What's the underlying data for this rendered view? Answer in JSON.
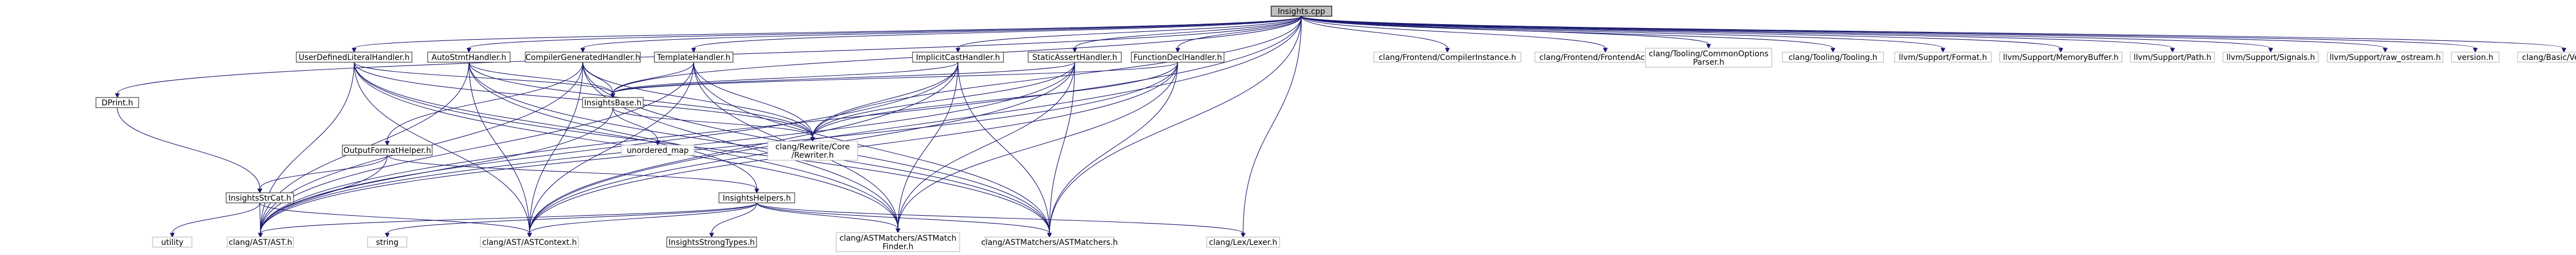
{
  "graph": {
    "edge_color": "#191970",
    "root_fill": "#bfbfbf",
    "box_border": "#bfbfbf",
    "documented_box_border": "#404040",
    "nodes": [
      {
        "id": "insights_cpp",
        "label": [
          "Insights.cpp"
        ],
        "kind": "root"
      },
      {
        "id": "dprint",
        "label": [
          "DPrint.h"
        ],
        "kind": "documented"
      },
      {
        "id": "udl",
        "label": [
          "UserDefinedLiteralHandler.h"
        ],
        "kind": "documented"
      },
      {
        "id": "autostmt",
        "label": [
          "AutoStmtHandler.h"
        ],
        "kind": "documented"
      },
      {
        "id": "compgen",
        "label": [
          "CompilerGeneratedHandler.h"
        ],
        "kind": "documented"
      },
      {
        "id": "templ",
        "label": [
          "TemplateHandler.h"
        ],
        "kind": "documented"
      },
      {
        "id": "implicit",
        "label": [
          "ImplicitCastHandler.h"
        ],
        "kind": "documented"
      },
      {
        "id": "staticassert",
        "label": [
          "StaticAssertHandler.h"
        ],
        "kind": "documented"
      },
      {
        "id": "funcdecl",
        "label": [
          "FunctionDeclHandler.h"
        ],
        "kind": "documented"
      },
      {
        "id": "compinst",
        "label": [
          "clang/Frontend/CompilerInstance.h"
        ],
        "kind": "system"
      },
      {
        "id": "frontactions",
        "label": [
          "clang/Frontend/FrontendActions.h"
        ],
        "kind": "system"
      },
      {
        "id": "commonopts",
        "label": [
          "clang/Tooling/CommonOptions",
          "Parser.h"
        ],
        "kind": "system"
      },
      {
        "id": "tooling",
        "label": [
          "clang/Tooling/Tooling.h"
        ],
        "kind": "system"
      },
      {
        "id": "format",
        "label": [
          "llvm/Support/Format.h"
        ],
        "kind": "system"
      },
      {
        "id": "membuf",
        "label": [
          "llvm/Support/MemoryBuffer.h"
        ],
        "kind": "system"
      },
      {
        "id": "path",
        "label": [
          "llvm/Support/Path.h"
        ],
        "kind": "system"
      },
      {
        "id": "signals",
        "label": [
          "llvm/Support/Signals.h"
        ],
        "kind": "system"
      },
      {
        "id": "ostream",
        "label": [
          "llvm/Support/raw_ostream.h"
        ],
        "kind": "system"
      },
      {
        "id": "version",
        "label": [
          "version.h"
        ],
        "kind": "system"
      },
      {
        "id": "basicversion",
        "label": [
          "clang/Basic/Version.h"
        ],
        "kind": "system"
      },
      {
        "id": "insightsbase",
        "label": [
          "InsightsBase.h"
        ],
        "kind": "documented"
      },
      {
        "id": "rewriter",
        "label": [
          "clang/Rewrite/Core",
          "/Rewriter.h"
        ],
        "kind": "system"
      },
      {
        "id": "unordered_map",
        "label": [
          "unordered_map"
        ],
        "kind": "system"
      },
      {
        "id": "outfmt",
        "label": [
          "OutputFormatHelper.h"
        ],
        "kind": "documented"
      },
      {
        "id": "strcat",
        "label": [
          "InsightsStrCat.h"
        ],
        "kind": "documented"
      },
      {
        "id": "helpers",
        "label": [
          "InsightsHelpers.h"
        ],
        "kind": "documented"
      },
      {
        "id": "utility",
        "label": [
          "utility"
        ],
        "kind": "system"
      },
      {
        "id": "ast",
        "label": [
          "clang/AST/AST.h"
        ],
        "kind": "system"
      },
      {
        "id": "string",
        "label": [
          "string"
        ],
        "kind": "system"
      },
      {
        "id": "astcontext",
        "label": [
          "clang/AST/ASTContext.h"
        ],
        "kind": "system"
      },
      {
        "id": "strongtypes",
        "label": [
          "InsightsStrongTypes.h"
        ],
        "kind": "documented"
      },
      {
        "id": "matchfinder",
        "label": [
          "clang/ASTMatchers/ASTMatch",
          "Finder.h"
        ],
        "kind": "system"
      },
      {
        "id": "matchers",
        "label": [
          "clang/ASTMatchers/ASTMatchers.h"
        ],
        "kind": "system"
      },
      {
        "id": "lexer",
        "label": [
          "clang/Lex/Lexer.h"
        ],
        "kind": "system"
      }
    ],
    "edges": [
      [
        "insights_cpp",
        "dprint"
      ],
      [
        "insights_cpp",
        "udl"
      ],
      [
        "insights_cpp",
        "autostmt"
      ],
      [
        "insights_cpp",
        "compgen"
      ],
      [
        "insights_cpp",
        "templ"
      ],
      [
        "insights_cpp",
        "implicit"
      ],
      [
        "insights_cpp",
        "staticassert"
      ],
      [
        "insights_cpp",
        "funcdecl"
      ],
      [
        "insights_cpp",
        "compinst"
      ],
      [
        "insights_cpp",
        "frontactions"
      ],
      [
        "insights_cpp",
        "commonopts"
      ],
      [
        "insights_cpp",
        "tooling"
      ],
      [
        "insights_cpp",
        "format"
      ],
      [
        "insights_cpp",
        "membuf"
      ],
      [
        "insights_cpp",
        "path"
      ],
      [
        "insights_cpp",
        "signals"
      ],
      [
        "insights_cpp",
        "ostream"
      ],
      [
        "insights_cpp",
        "version"
      ],
      [
        "insights_cpp",
        "basicversion"
      ],
      [
        "insights_cpp",
        "insightsbase"
      ],
      [
        "insights_cpp",
        "rewriter"
      ],
      [
        "insights_cpp",
        "ast"
      ],
      [
        "insights_cpp",
        "astcontext"
      ],
      [
        "insights_cpp",
        "matchers"
      ],
      [
        "insights_cpp",
        "lexer"
      ],
      [
        "dprint",
        "strcat"
      ],
      [
        "udl",
        "insightsbase"
      ],
      [
        "udl",
        "rewriter"
      ],
      [
        "udl",
        "matchfinder"
      ],
      [
        "udl",
        "matchers"
      ],
      [
        "udl",
        "ast"
      ],
      [
        "udl",
        "astcontext"
      ],
      [
        "udl",
        "helpers"
      ],
      [
        "autostmt",
        "insightsbase"
      ],
      [
        "autostmt",
        "rewriter"
      ],
      [
        "autostmt",
        "matchfinder"
      ],
      [
        "autostmt",
        "matchers"
      ],
      [
        "autostmt",
        "ast"
      ],
      [
        "autostmt",
        "astcontext"
      ],
      [
        "compgen",
        "insightsbase"
      ],
      [
        "compgen",
        "rewriter"
      ],
      [
        "compgen",
        "matchfinder"
      ],
      [
        "compgen",
        "matchers"
      ],
      [
        "compgen",
        "ast"
      ],
      [
        "compgen",
        "astcontext"
      ],
      [
        "compgen",
        "outfmt"
      ],
      [
        "templ",
        "insightsbase"
      ],
      [
        "templ",
        "rewriter"
      ],
      [
        "templ",
        "matchfinder"
      ],
      [
        "templ",
        "matchers"
      ],
      [
        "templ",
        "ast"
      ],
      [
        "templ",
        "astcontext"
      ],
      [
        "implicit",
        "insightsbase"
      ],
      [
        "implicit",
        "rewriter"
      ],
      [
        "implicit",
        "matchfinder"
      ],
      [
        "implicit",
        "matchers"
      ],
      [
        "implicit",
        "ast"
      ],
      [
        "implicit",
        "astcontext"
      ],
      [
        "staticassert",
        "insightsbase"
      ],
      [
        "staticassert",
        "rewriter"
      ],
      [
        "staticassert",
        "matchfinder"
      ],
      [
        "staticassert",
        "matchers"
      ],
      [
        "staticassert",
        "ast"
      ],
      [
        "staticassert",
        "astcontext"
      ],
      [
        "funcdecl",
        "insightsbase"
      ],
      [
        "funcdecl",
        "rewriter"
      ],
      [
        "funcdecl",
        "matchfinder"
      ],
      [
        "funcdecl",
        "matchers"
      ],
      [
        "funcdecl",
        "ast"
      ],
      [
        "funcdecl",
        "astcontext"
      ],
      [
        "insightsbase",
        "rewriter"
      ],
      [
        "insightsbase",
        "unordered_map"
      ],
      [
        "insightsbase",
        "ast"
      ],
      [
        "outfmt",
        "strcat"
      ],
      [
        "outfmt",
        "helpers"
      ],
      [
        "outfmt",
        "ast"
      ],
      [
        "strcat",
        "utility"
      ],
      [
        "strcat",
        "ast"
      ],
      [
        "strcat",
        "astcontext"
      ],
      [
        "helpers",
        "ast"
      ],
      [
        "helpers",
        "string"
      ],
      [
        "helpers",
        "astcontext"
      ],
      [
        "helpers",
        "strongtypes"
      ],
      [
        "helpers",
        "matchfinder"
      ],
      [
        "helpers",
        "matchers"
      ],
      [
        "helpers",
        "lexer"
      ]
    ]
  }
}
